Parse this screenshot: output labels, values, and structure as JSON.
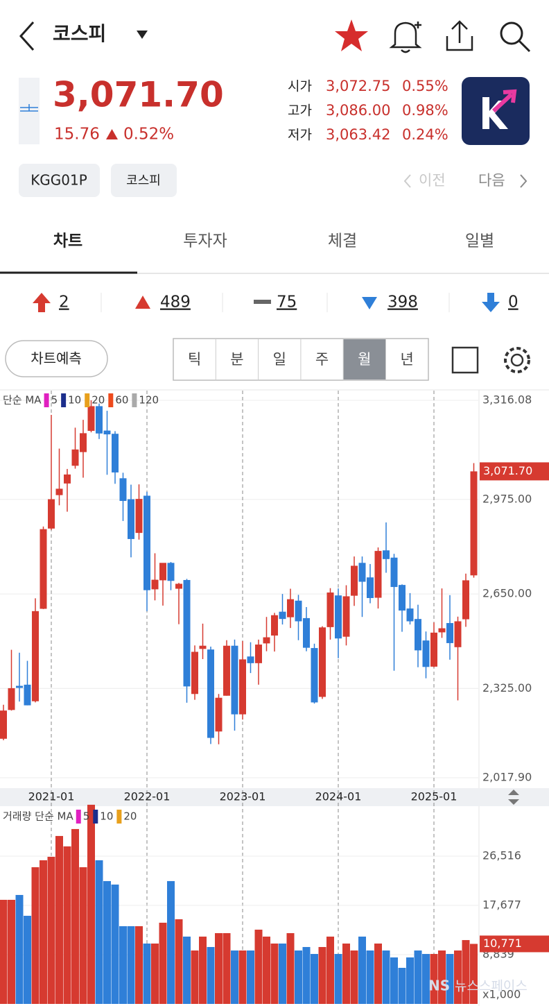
{
  "header": {
    "title": "코스피",
    "price": "3,071.70",
    "change": "15.76",
    "change_pct": "0.52%",
    "quotes": [
      {
        "label": "시가",
        "value": "3,072.75",
        "pct": "0.55%"
      },
      {
        "label": "고가",
        "value": "3,086.00",
        "pct": "0.98%"
      },
      {
        "label": "저가",
        "value": "3,063.42",
        "pct": "0.24%"
      }
    ]
  },
  "tags": [
    "KGG01P",
    "코스피"
  ],
  "nav": {
    "prev": "이전",
    "next": "다음"
  },
  "tabs": [
    "차트",
    "투자자",
    "체결",
    "일별"
  ],
  "breadth": [
    "2",
    "489",
    "75",
    "398",
    "0"
  ],
  "predict": "차트예측",
  "periods": [
    "틱",
    "분",
    "일",
    "주",
    "월",
    "년"
  ],
  "watermark": "뉴스스페이스",
  "chart_data": [
    {
      "type": "candlestick",
      "legend_title": "단순 MA",
      "legend": [
        "5",
        "10",
        "20",
        "60",
        "120"
      ],
      "legend_colors": [
        "#e020c0",
        "#1c2e8c",
        "#e8a01c",
        "#ee4a1c",
        "#aaaaaa"
      ],
      "categories": [
        null,
        null,
        null,
        null,
        null,
        null,
        "2021-01",
        null,
        null,
        null,
        null,
        null,
        null,
        null,
        null,
        null,
        null,
        null,
        "2022-01",
        null,
        null,
        null,
        null,
        null,
        null,
        null,
        null,
        null,
        null,
        null,
        "2023-01",
        null,
        null,
        null,
        null,
        null,
        null,
        null,
        null,
        null,
        null,
        null,
        "2024-01",
        null,
        null,
        null,
        null,
        null,
        null,
        null,
        null,
        null,
        null,
        null,
        "2025-01",
        null,
        null,
        null,
        null,
        null
      ],
      "open": [
        2152,
        2251,
        2334,
        2338,
        2281,
        2599,
        2875,
        2990,
        3030,
        3091,
        3138,
        3211,
        3296,
        3212,
        3201,
        3048,
        2976,
        2860,
        2988,
        2666,
        2697,
        2757,
        2668,
        2698,
        2306,
        2461,
        2459,
        2177,
        2300,
        2472,
        2236,
        2435,
        2412,
        2480,
        2507,
        2589,
        2570,
        2627,
        2567,
        2464,
        2296,
        2536,
        2645,
        2503,
        2644,
        2757,
        2707,
        2637,
        2800,
        2775,
        2681,
        2600,
        2564,
        2490,
        2400,
        2518,
        2550,
        2467,
        2563,
        2714
      ],
      "high": [
        2269,
        2458,
        2448,
        2420,
        2635,
        2882,
        3266,
        3150,
        3080,
        3222,
        3249,
        3316,
        3305,
        3280,
        3210,
        3067,
        3026,
        3027,
        3001,
        2790,
        2754,
        2760,
        2688,
        2702,
        2473,
        2548,
        2469,
        2306,
        2491,
        2493,
        2488,
        2484,
        2493,
        2571,
        2585,
        2650,
        2668,
        2647,
        2605,
        2479,
        2539,
        2670,
        2669,
        2680,
        2779,
        2779,
        2753,
        2810,
        2896,
        2788,
        2683,
        2653,
        2613,
        2521,
        2552,
        2669,
        2646,
        2572,
        2720,
        3100
      ],
      "low": [
        2147,
        2249,
        2280,
        2267,
        2277,
        2598,
        2870,
        2955,
        2933,
        3081,
        3050,
        3206,
        3183,
        3060,
        3029,
        2901,
        2776,
        2837,
        2591,
        2628,
        2610,
        2663,
        2546,
        2276,
        2286,
        2426,
        2134,
        2133,
        2300,
        2180,
        2218,
        2378,
        2338,
        2453,
        2452,
        2545,
        2533,
        2491,
        2453,
        2273,
        2289,
        2493,
        2429,
        2473,
        2609,
        2571,
        2618,
        2600,
        2723,
        2386,
        2520,
        2545,
        2398,
        2360,
        2398,
        2499,
        2424,
        2284,
        2537,
        2706
      ],
      "close": [
        2249,
        2326,
        2327,
        2267,
        2591,
        2873,
        2976,
        3012,
        3061,
        3147,
        3203,
        3296,
        3202,
        3199,
        3068,
        2970,
        2839,
        2977,
        2663,
        2699,
        2757,
        2695,
        2685,
        2332,
        2451,
        2472,
        2155,
        2293,
        2472,
        2236,
        2425,
        2412,
        2476,
        2501,
        2577,
        2564,
        2632,
        2556,
        2465,
        2277,
        2535,
        2655,
        2497,
        2642,
        2747,
        2692,
        2636,
        2798,
        2770,
        2674,
        2593,
        2556,
        2456,
        2399,
        2517,
        2532,
        2481,
        2556,
        2697,
        3071.7
      ],
      "up_color": "#d63a30",
      "down_color": "#2f7fd8",
      "ylim": [
        2017.9,
        3316.08
      ],
      "yticks": [
        {
          "value": 3316.08,
          "label": "3,316.08"
        },
        {
          "value": 2975,
          "label": "2,975.00"
        },
        {
          "value": 2650,
          "label": "2,650.00"
        },
        {
          "value": 2325,
          "label": "2,325.00"
        },
        {
          "value": 2017.9,
          "label": "2,017.90"
        }
      ],
      "grid": true
    },
    {
      "type": "bar",
      "legend_title": "거래량 단순 MA",
      "legend": [
        "5",
        "10",
        "20"
      ],
      "legend_colors": [
        "#e020c0",
        "#1c2e8c",
        "#e8a01c"
      ],
      "unit": "x1,000",
      "tag": "10,771",
      "values": [
        18675,
        18675,
        19547,
        15812,
        24527,
        25772,
        26394,
        30129,
        28262,
        31374,
        24527,
        35732,
        25772,
        22037,
        21414,
        13944,
        13944,
        13944,
        10832,
        10832,
        14567,
        22037,
        15189,
        12077,
        9587,
        12077,
        10209,
        12699,
        12699,
        9587,
        9587,
        9587,
        13322,
        12077,
        10832,
        10832,
        12699,
        9587,
        10209,
        8964,
        10209,
        12077,
        8964,
        10832,
        9587,
        12077,
        9587,
        10832,
        9587,
        8342,
        6474,
        8342,
        9587,
        8964,
        8964,
        9587,
        8964,
        9587,
        11454,
        10771
      ],
      "ylim": [
        0,
        35100
      ],
      "yticks": [
        {
          "value": 26516,
          "label": "26,516"
        },
        {
          "value": 17677,
          "label": "17,677"
        },
        {
          "value": 8839,
          "label": "8,839"
        }
      ],
      "grid": true
    }
  ]
}
